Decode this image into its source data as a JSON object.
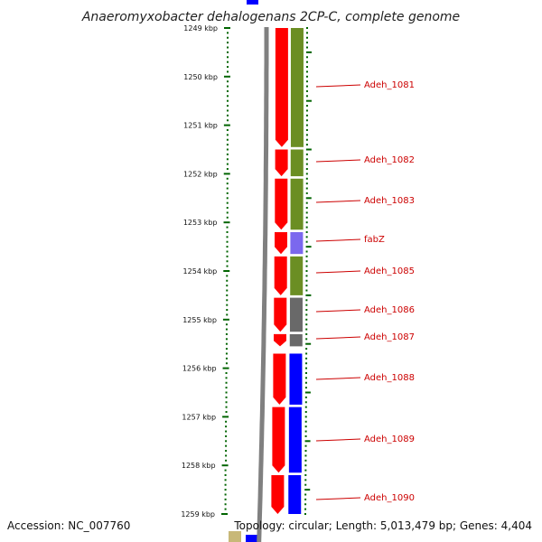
{
  "title": "Anaeromyxobacter dehalogenans 2CP-C, complete genome",
  "accession": "Accession: NC_007760",
  "topology": "Topology: circular; Length: 5,013,479 bp; Genes: 4,404",
  "ticks": [
    "1249 kbp",
    "1250 kbp",
    "1251 kbp",
    "1252 kbp",
    "1253 kbp",
    "1254 kbp",
    "1255 kbp",
    "1256 kbp",
    "1257 kbp",
    "1258 kbp",
    "1259 kbp"
  ],
  "genes": [
    {
      "label": "Adeh_1081",
      "start": 1249.0,
      "end": 1251.45,
      "cog_color": "#6b8e23"
    },
    {
      "label": "Adeh_1082",
      "start": 1251.5,
      "end": 1252.05,
      "cog_color": "#6b8e23"
    },
    {
      "label": "Adeh_1083",
      "start": 1252.1,
      "end": 1253.15,
      "cog_color": "#6b8e23"
    },
    {
      "label": "fabZ",
      "start": 1253.2,
      "end": 1253.65,
      "cog_color": "#7b68ee"
    },
    {
      "label": "Adeh_1085",
      "start": 1253.7,
      "end": 1254.5,
      "cog_color": "#6b8e23"
    },
    {
      "label": "Adeh_1086",
      "start": 1254.55,
      "end": 1255.25,
      "cog_color": "#696969"
    },
    {
      "label": "Adeh_1087",
      "start": 1255.3,
      "end": 1255.55,
      "cog_color": "#696969"
    },
    {
      "label": "Adeh_1088",
      "start": 1255.7,
      "end": 1256.75,
      "cog_color": "#0000ff"
    },
    {
      "label": "Adeh_1089",
      "start": 1256.8,
      "end": 1258.15,
      "cog_color": "#0000ff"
    },
    {
      "label": "Adeh_1090",
      "start": 1258.2,
      "end": 1259.0,
      "cog_color": "#0000ff"
    }
  ],
  "colors": {
    "strand": "#ff0000",
    "backbone": "#808080",
    "tick": "#006400",
    "label": "#cc0000"
  }
}
